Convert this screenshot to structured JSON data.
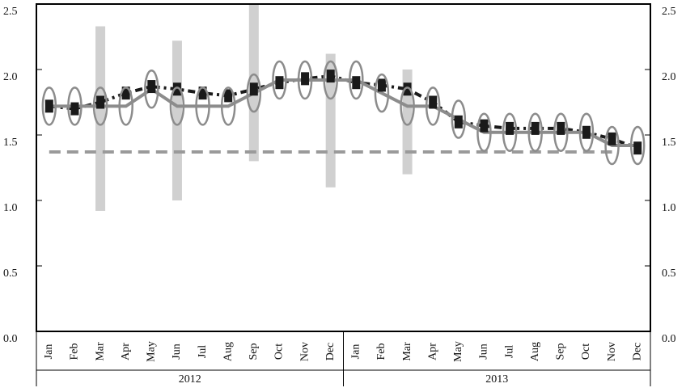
{
  "chart_data": {
    "type": "line",
    "categories": [
      "Jan",
      "Feb",
      "Mar",
      "Apr",
      "May",
      "Jun",
      "Jul",
      "Aug",
      "Sep",
      "Oct",
      "Nov",
      "Dec",
      "Jan",
      "Feb",
      "Mar",
      "Apr",
      "May",
      "Jun",
      "Jul",
      "Aug",
      "Sep",
      "Oct",
      "Nov",
      "Dec"
    ],
    "groups": [
      "2012",
      "2013"
    ],
    "series": [
      {
        "color": "#1a1a1a",
        "style": "dashed",
        "marker": "square",
        "values": [
          1.72,
          1.7,
          1.75,
          1.82,
          1.87,
          1.85,
          1.82,
          1.8,
          1.85,
          1.9,
          1.93,
          1.95,
          1.9,
          1.88,
          1.85,
          1.75,
          1.6,
          1.57,
          1.55,
          1.55,
          1.55,
          1.52,
          1.47,
          1.4
        ]
      },
      {
        "color": "#8c8c8c",
        "style": "solid",
        "marker": "ellipse",
        "values": [
          1.72,
          1.72,
          1.72,
          1.72,
          1.85,
          1.72,
          1.72,
          1.72,
          1.82,
          1.92,
          1.92,
          1.92,
          1.92,
          1.82,
          1.72,
          1.72,
          1.62,
          1.52,
          1.52,
          1.52,
          1.52,
          1.52,
          1.42,
          1.42
        ]
      },
      {
        "color": "#9a9a9a",
        "style": "longdash",
        "marker": "none",
        "values": [
          1.37,
          1.37,
          1.37,
          1.37,
          1.37,
          1.37,
          1.37,
          1.37,
          1.37,
          1.37,
          1.37,
          1.37,
          1.37,
          1.37,
          1.37,
          1.37,
          1.37,
          1.37,
          1.37,
          1.37,
          1.37,
          1.37,
          1.37,
          null
        ]
      }
    ],
    "ranges": {
      "color": "#d0d0d0",
      "low": [
        null,
        null,
        0.92,
        null,
        null,
        1.0,
        null,
        null,
        1.3,
        null,
        null,
        1.1,
        null,
        null,
        1.2,
        null,
        null,
        null,
        null,
        null,
        null,
        null,
        null,
        null
      ],
      "high": [
        null,
        null,
        2.33,
        null,
        null,
        2.22,
        null,
        null,
        2.5,
        null,
        null,
        2.12,
        null,
        null,
        2.0,
        null,
        null,
        null,
        null,
        null,
        null,
        null,
        null,
        null
      ]
    },
    "ylim": [
      0,
      2.5
    ],
    "yticks": [
      {
        "value": 0,
        "label": "0.0"
      },
      0.5,
      {
        "value": 1,
        "label": "1.0"
      },
      1.5,
      {
        "value": 2,
        "label": "2.0"
      },
      2.5
    ]
  }
}
